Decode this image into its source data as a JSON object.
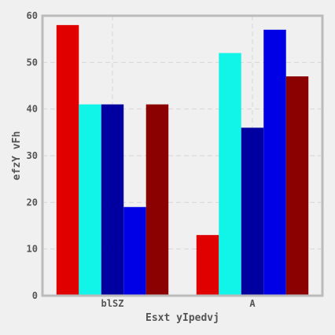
{
  "chart_data": {
    "type": "bar",
    "title": "",
    "xlabel": "Esxt yIpedvj",
    "ylabel": "efzY vFh",
    "categories": [
      "blSZ",
      "A"
    ],
    "series": [
      {
        "color": "#e00000",
        "values": [
          58,
          13
        ]
      },
      {
        "color": "#10f5e8",
        "values": [
          41,
          52
        ]
      },
      {
        "color": "#0000a0",
        "values": [
          41,
          36
        ]
      },
      {
        "color": "#0000e6",
        "values": [
          19,
          57
        ]
      },
      {
        "color": "#8b0000",
        "values": [
          41,
          47
        ]
      }
    ],
    "ylim": [
      0,
      60
    ],
    "yticks": [
      0,
      10,
      20,
      30,
      40,
      50,
      60
    ],
    "grid": true,
    "legend": "none"
  }
}
